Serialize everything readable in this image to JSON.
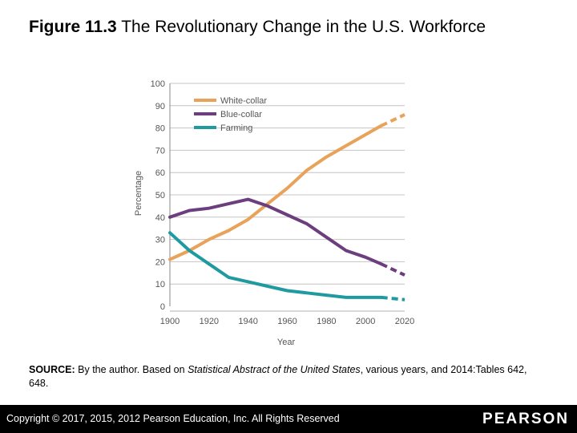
{
  "title": {
    "label": "Figure 11.3",
    "text": "The Revolutionary Change in the U.S. Workforce"
  },
  "source": {
    "label": "SOURCE:",
    "pre": "By the author. Based on",
    "publication": "Statistical Abstract of the United States",
    "post": ", various years, and 2014:Tables 642, 648."
  },
  "footer": {
    "copyright": "Copyright © 2017, 2015, 2012 Pearson Education, Inc. All Rights Reserved",
    "brand": "PEARSON"
  },
  "chart_data": {
    "type": "line",
    "title": "",
    "xlabel": "Year",
    "ylabel": "Percentage",
    "xlim": [
      1900,
      2020
    ],
    "ylim": [
      0,
      100
    ],
    "x_ticks": [
      1900,
      1920,
      1940,
      1960,
      1980,
      2000,
      2020
    ],
    "y_ticks": [
      0,
      10,
      20,
      30,
      40,
      50,
      60,
      70,
      80,
      90,
      100
    ],
    "grid": "horizontal",
    "legend": "top-left",
    "series": [
      {
        "name": "White-collar",
        "color": "#e8a25a",
        "x": [
          1900,
          1910,
          1920,
          1930,
          1940,
          1950,
          1960,
          1970,
          1980,
          1990,
          2000,
          2008
        ],
        "y": [
          21,
          25,
          30,
          34,
          39,
          46,
          53,
          61,
          67,
          72,
          77,
          81
        ],
        "projected_x": [
          2008,
          2020
        ],
        "projected_y": [
          81,
          86
        ]
      },
      {
        "name": "Blue-collar",
        "color": "#6d3e7e",
        "x": [
          1900,
          1910,
          1920,
          1930,
          1940,
          1950,
          1960,
          1970,
          1980,
          1990,
          2000,
          2008
        ],
        "y": [
          40,
          43,
          44,
          46,
          48,
          45,
          41,
          37,
          31,
          25,
          22,
          19
        ],
        "projected_x": [
          2008,
          2020
        ],
        "projected_y": [
          19,
          14
        ]
      },
      {
        "name": "Farming",
        "color": "#1e9aa0",
        "x": [
          1900,
          1910,
          1920,
          1930,
          1940,
          1950,
          1960,
          1970,
          1980,
          1990,
          2000,
          2008
        ],
        "y": [
          33,
          25,
          19,
          13,
          11,
          9,
          7,
          6,
          5,
          4,
          4,
          4
        ],
        "projected_x": [
          2008,
          2020
        ],
        "projected_y": [
          4,
          3
        ]
      }
    ]
  }
}
